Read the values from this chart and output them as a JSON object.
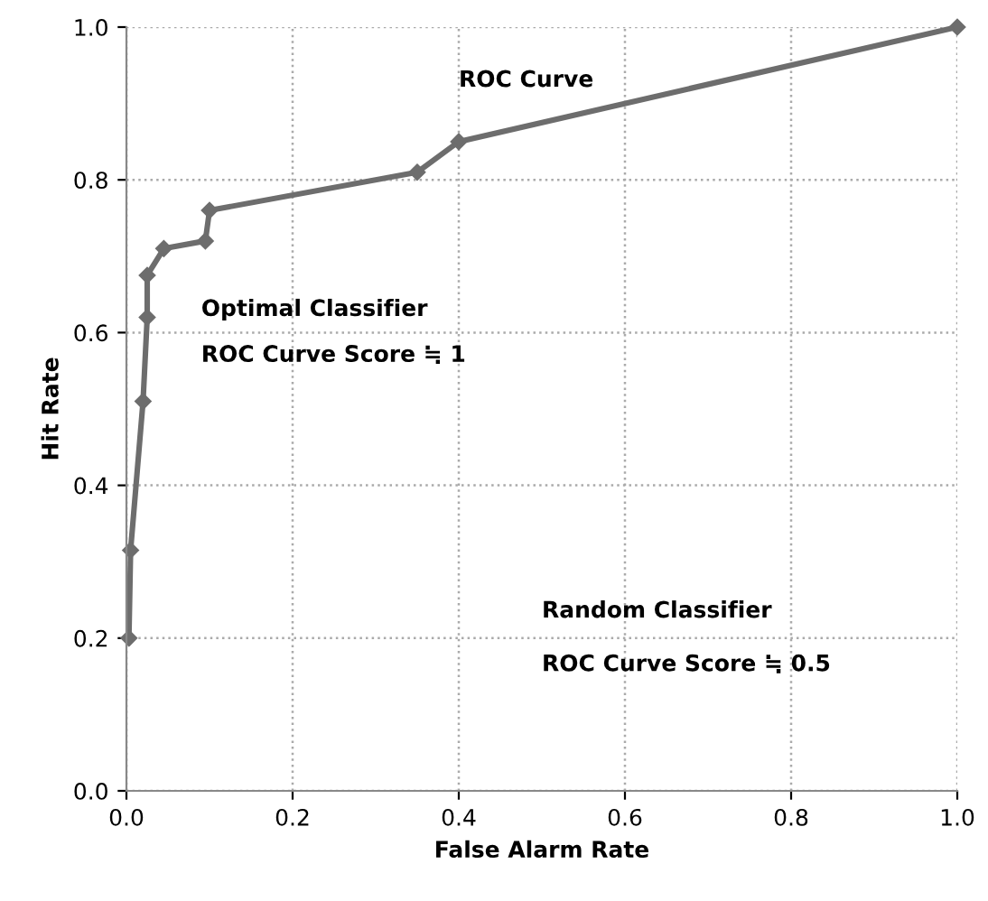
{
  "chart_data": {
    "type": "line",
    "xlabel": "False Alarm Rate",
    "ylabel": "Hit Rate",
    "x": [
      0.003,
      0.005,
      0.02,
      0.025,
      0.025,
      0.045,
      0.095,
      0.1,
      0.35,
      0.4,
      1.0
    ],
    "series": [
      {
        "color": "#6d6d6d",
        "values": [
          0.2,
          0.315,
          0.51,
          0.62,
          0.675,
          0.71,
          0.72,
          0.76,
          0.81,
          0.85,
          1.0
        ]
      }
    ],
    "xlim": [
      0,
      1
    ],
    "ylim": [
      0,
      1
    ],
    "xticks": [
      {
        "value": 0,
        "label": "0.0"
      },
      0.2,
      0.4,
      0.6,
      0.8,
      {
        "value": 1,
        "label": "1.0"
      }
    ],
    "yticks": [
      {
        "value": 0,
        "label": "0.0"
      },
      0.2,
      0.4,
      0.6,
      0.8,
      {
        "value": 1,
        "label": "1.0"
      }
    ],
    "grid": true,
    "marker": "diamond",
    "line_style": "solid",
    "legend": false,
    "annotations": [
      "ROC Curve",
      "Optimal Classifier",
      "ROC Curve Score ≒ 1",
      "Random Classifier",
      "ROC Curve Score ≒ 0.5"
    ]
  }
}
